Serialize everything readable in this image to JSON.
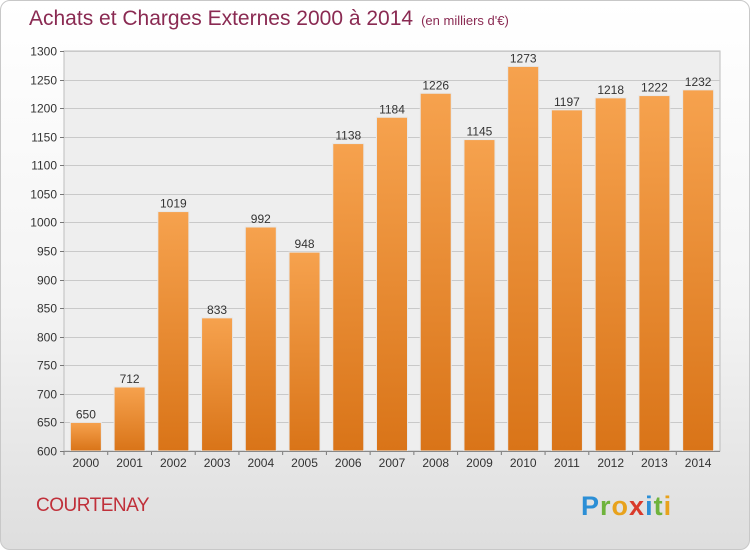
{
  "header": {
    "title": "Achats et Charges Externes 2000 à 2014",
    "subtitle": "(en milliers d'€)"
  },
  "footer": {
    "commune": "COURTENAY",
    "logo": "Proxiti"
  },
  "colors": {
    "bar_top": "#f6a24e",
    "bar_bottom": "#d97418",
    "title": "#8a2a52",
    "commune": "#c0303a"
  },
  "chart_data": {
    "type": "bar",
    "title": "Achats et Charges Externes 2000 à 2014",
    "subtitle": "(en milliers d'€)",
    "categories": [
      "2000",
      "2001",
      "2002",
      "2003",
      "2004",
      "2005",
      "2006",
      "2007",
      "2008",
      "2009",
      "2010",
      "2011",
      "2012",
      "2013",
      "2014"
    ],
    "values": [
      650,
      712,
      1019,
      833,
      992,
      948,
      1138,
      1184,
      1226,
      1145,
      1273,
      1197,
      1218,
      1222,
      1232
    ],
    "ylim": [
      600,
      1300
    ],
    "yticks": [
      600,
      650,
      700,
      750,
      800,
      850,
      900,
      950,
      1000,
      1050,
      1100,
      1150,
      1200,
      1250,
      1300
    ],
    "grid": true,
    "data_labels": true
  }
}
